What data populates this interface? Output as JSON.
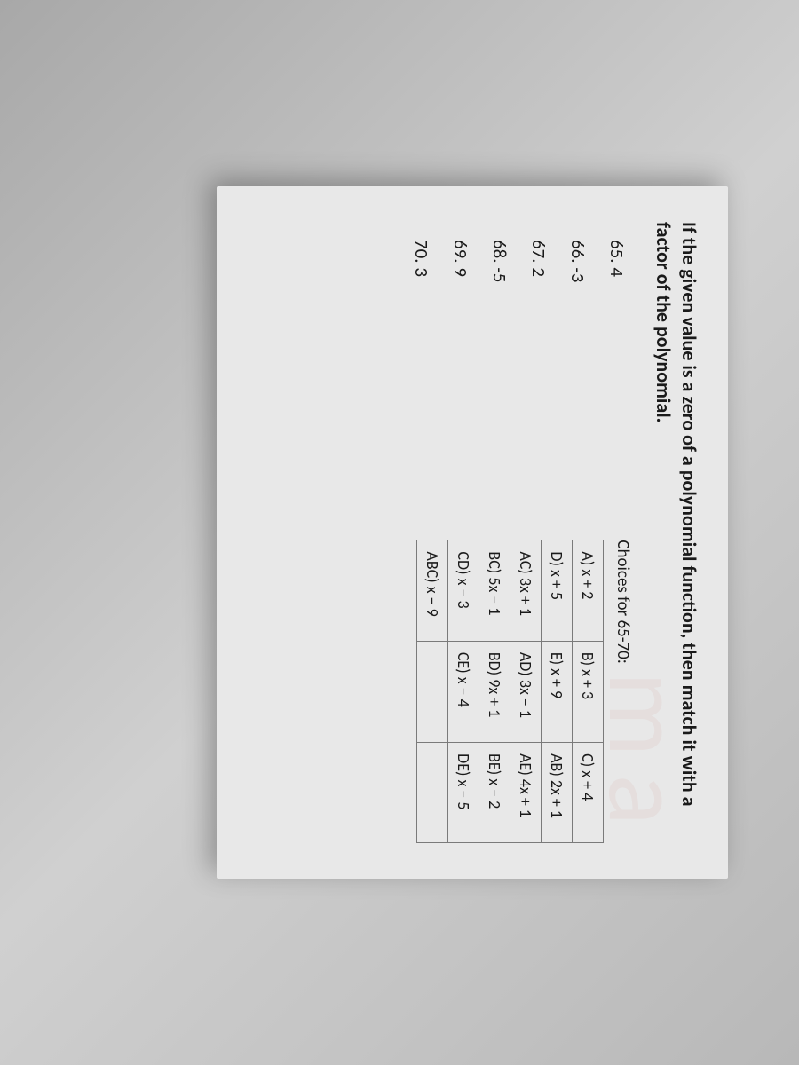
{
  "instruction": "If the given value is a zero of a polynomial function, then match it with a factor of the polynomial.",
  "questions": [
    {
      "num": "65.",
      "val": "4"
    },
    {
      "num": "66.",
      "val": "-3"
    },
    {
      "num": "67.",
      "val": "2"
    },
    {
      "num": "68.",
      "val": "-5"
    },
    {
      "num": "69.",
      "val": "9"
    },
    {
      "num": "70.",
      "val": "3"
    }
  ],
  "choices_header": "Choices for 65-70:",
  "choices_table": {
    "rows": [
      [
        "A) x + 2",
        "B) x + 3",
        "C) x + 4"
      ],
      [
        "D) x + 5",
        "E) x + 9",
        "AB) 2x + 1"
      ],
      [
        "AC) 3x + 1",
        "AD) 3x − 1",
        "AE) 4x + 1"
      ],
      [
        "BC) 5x − 1",
        "BD) 9x + 1",
        "BE) x − 2"
      ],
      [
        "CD) x − 3",
        "CE) x − 4",
        "DE) x − 5"
      ],
      [
        "ABC) x − 9",
        "",
        ""
      ]
    ]
  },
  "colors": {
    "text": "#1a1a1a",
    "border": "#7a7a7a",
    "page_bg": "#e8e8e8"
  }
}
